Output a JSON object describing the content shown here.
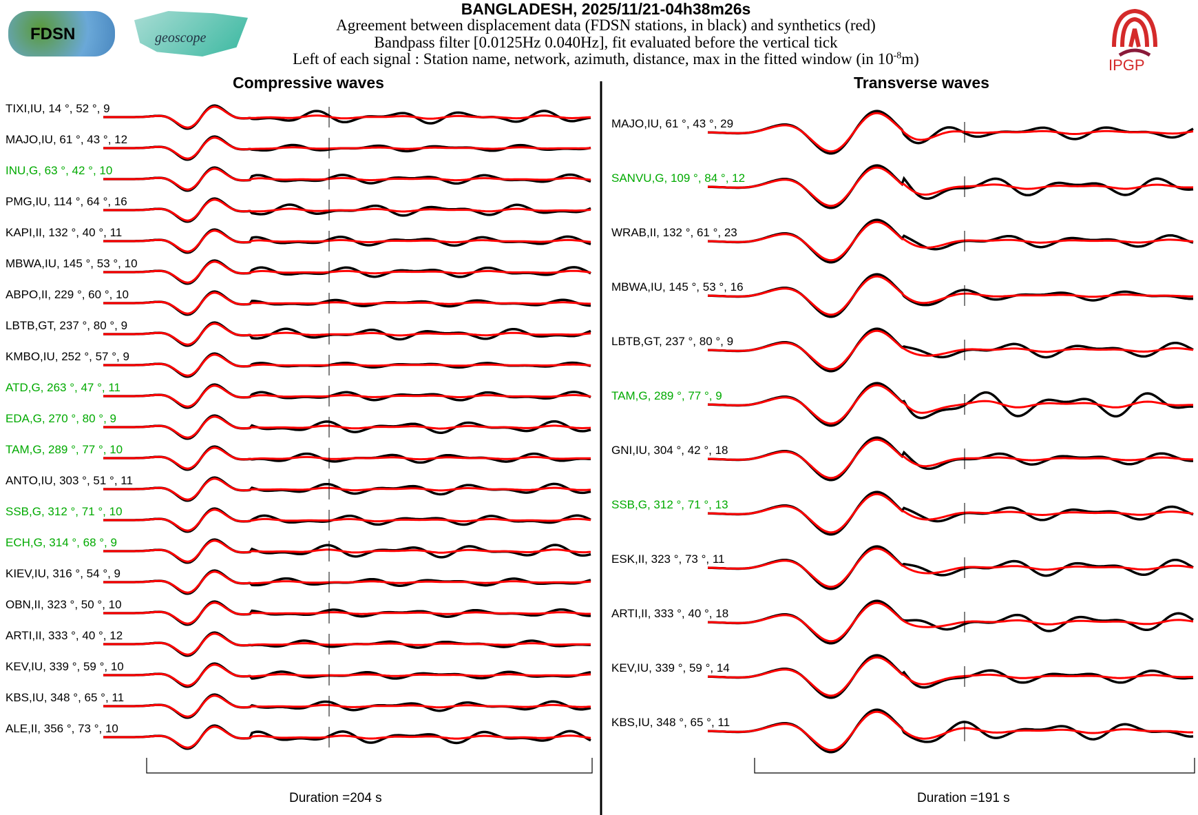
{
  "header": {
    "title": "BANGLADESH, 2025/11/21-04h38m26s",
    "line1": "Agreement between displacement data (FDSN stations, in black) and synthetics (red)",
    "line2": "Bandpass filter [0.0125Hz 0.040Hz], fit evaluated before the vertical tick",
    "line3": "Left of each signal : Station name, network, azimuth, distance, max in the fitted window (in 10",
    "line3_exp": "-8",
    "line3_end": "m)",
    "logos": {
      "fdsn": "FDSN",
      "geoscope": "geoscope",
      "ipgp": "IPGP"
    }
  },
  "colors": {
    "data": "#000000",
    "synthetic": "#ff0000",
    "geoscope_label": "#00aa00"
  },
  "left": {
    "title": "Compressive waves",
    "duration": "Duration =204 s",
    "stations": [
      {
        "label": "TIXI,IU, 14 °, 52 °, 9",
        "green": false
      },
      {
        "label": "MAJO,IU, 61 °, 43 °, 12",
        "green": false
      },
      {
        "label": "INU,G, 63 °, 42 °, 10",
        "green": true
      },
      {
        "label": "PMG,IU, 114 °, 64 °, 16",
        "green": false
      },
      {
        "label": "KAPI,II, 132 °, 40 °, 11",
        "green": false
      },
      {
        "label": "MBWA,IU, 145 °, 53 °, 10",
        "green": false
      },
      {
        "label": "ABPO,II, 229 °, 60 °, 10",
        "green": false
      },
      {
        "label": "LBTB,GT, 237 °, 80 °, 9",
        "green": false
      },
      {
        "label": "KMBO,IU, 252 °, 57 °, 9",
        "green": false
      },
      {
        "label": "ATD,G, 263 °, 47 °, 11",
        "green": true
      },
      {
        "label": "EDA,G, 270 °, 80 °, 9",
        "green": true
      },
      {
        "label": "TAM,G, 289 °, 77 °, 10",
        "green": true
      },
      {
        "label": "ANTO,IU, 303 °, 51 °, 11",
        "green": false
      },
      {
        "label": "SSB,G, 312 °, 71 °, 10",
        "green": true
      },
      {
        "label": "ECH,G, 314 °, 68 °, 9",
        "green": true
      },
      {
        "label": "KIEV,IU, 316 °, 54 °, 9",
        "green": false
      },
      {
        "label": "OBN,II, 323 °, 50 °, 10",
        "green": false
      },
      {
        "label": "ARTI,II, 333 °, 40 °, 12",
        "green": false
      },
      {
        "label": "KEV,IU, 339 °, 59 °, 10",
        "green": false
      },
      {
        "label": "KBS,IU, 348 °, 65 °, 11",
        "green": false
      },
      {
        "label": "ALE,II, 356 °, 73 °, 10",
        "green": false
      }
    ]
  },
  "right": {
    "title": "Transverse waves",
    "duration": "Duration =191 s",
    "stations": [
      {
        "label": "MAJO,IU, 61 °, 43 °, 29",
        "green": false
      },
      {
        "label": "SANVU,G, 109 °, 84 °, 12",
        "green": true
      },
      {
        "label": "WRAB,II, 132 °, 61 °, 23",
        "green": false
      },
      {
        "label": "MBWA,IU, 145 °, 53 °, 16",
        "green": false
      },
      {
        "label": "LBTB,GT, 237 °, 80 °, 9",
        "green": false
      },
      {
        "label": "TAM,G, 289 °, 77 °, 9",
        "green": true
      },
      {
        "label": "GNI,IU, 304 °, 42 °, 18",
        "green": false
      },
      {
        "label": "SSB,G, 312 °, 71 °, 13",
        "green": true
      },
      {
        "label": "ESK,II, 323 °, 73 °, 11",
        "green": false
      },
      {
        "label": "ARTI,II, 333 °, 40 °, 18",
        "green": false
      },
      {
        "label": "KEV,IU, 339 °, 59 °, 14",
        "green": false
      },
      {
        "label": "KBS,IU, 348 °, 65 °, 11",
        "green": false
      }
    ]
  },
  "chart_data": {
    "type": "line",
    "title": "Agreement between displacement data and synthetics",
    "panels": [
      "Compressive waves",
      "Transverse waves"
    ],
    "durations_s": [
      204,
      191
    ],
    "series": [
      "data (black)",
      "synthetics (red)"
    ]
  }
}
